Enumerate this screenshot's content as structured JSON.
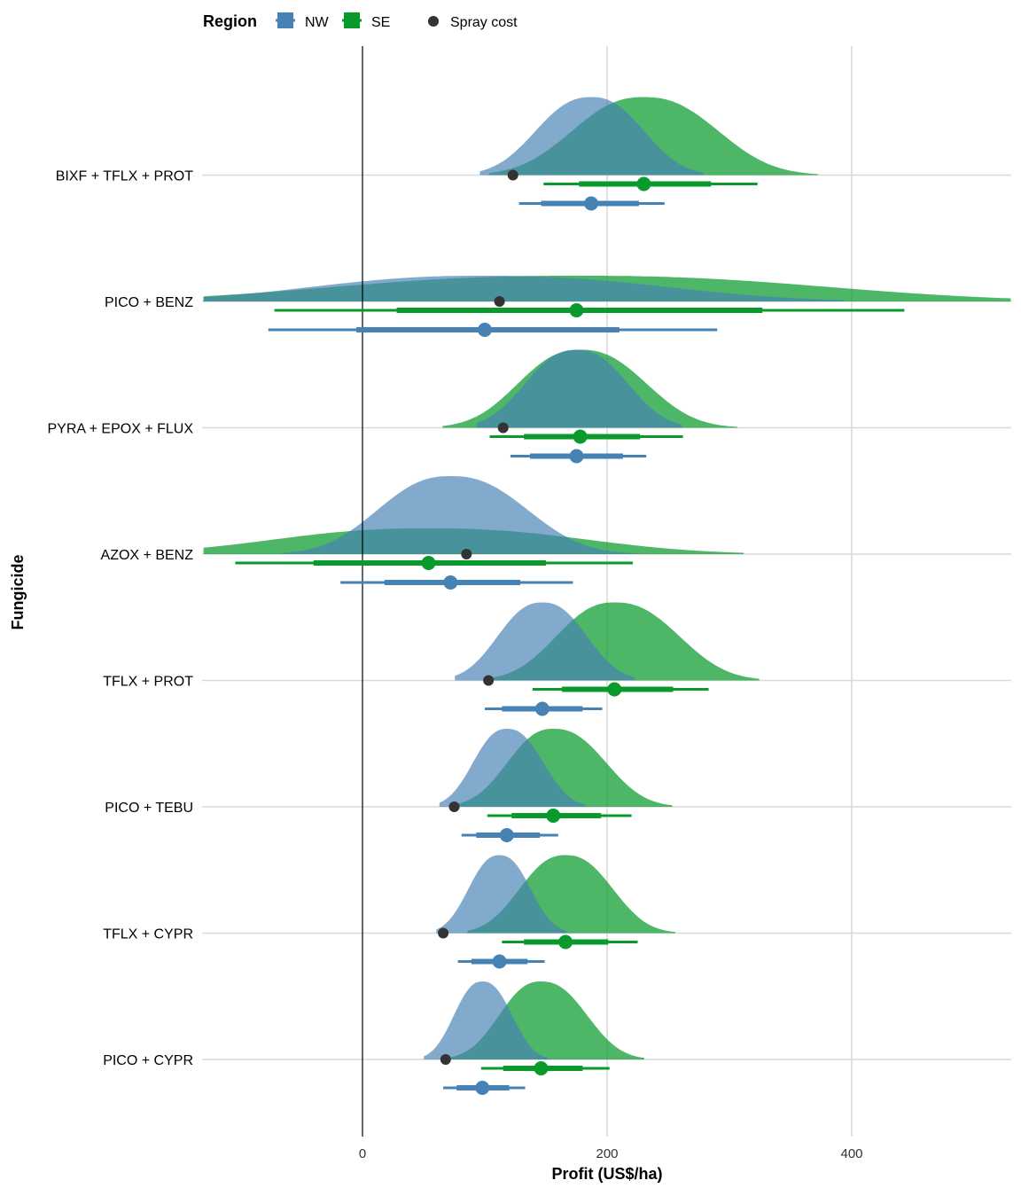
{
  "chart_data": {
    "type": "ridgeline",
    "xlabel": "Profit (US$/ha)",
    "ylabel": "Fungicide",
    "xlim": [
      -130,
      530
    ],
    "xticks": [
      0,
      200,
      400
    ],
    "grid": true,
    "legend": {
      "position": "top",
      "title": "Region",
      "items": [
        {
          "label": "NW",
          "color": "#4682b4"
        },
        {
          "label": "SE",
          "color": "#0a9a2c"
        }
      ],
      "point_label": "Spray cost"
    },
    "categories": [
      "BIXF + TFLX + PROT",
      "PICO + BENZ",
      "PYRA + EPOX + FLUX",
      "AZOX + BENZ",
      "TFLX + PROT",
      "PICO + TEBU",
      "TFLX + CYPR",
      "PICO + CYPR"
    ],
    "series": [
      {
        "name": "NW",
        "color": "#4682b4",
        "median": [
          187,
          100,
          175,
          72,
          147,
          118,
          112,
          98
        ],
        "interval_66": [
          [
            146,
            226
          ],
          [
            -5,
            210
          ],
          [
            137,
            213
          ],
          [
            18,
            129
          ],
          [
            114,
            180
          ],
          [
            93,
            145
          ],
          [
            89,
            135
          ],
          [
            77,
            120
          ]
        ],
        "interval_95": [
          [
            128,
            247
          ],
          [
            -77,
            290
          ],
          [
            121,
            232
          ],
          [
            -18,
            172
          ],
          [
            100,
            196
          ],
          [
            81,
            160
          ],
          [
            78,
            149
          ],
          [
            66,
            133
          ]
        ]
      },
      {
        "name": "SE",
        "color": "#0a9a2c",
        "median": [
          230,
          175,
          178,
          54,
          206,
          156,
          166,
          146
        ],
        "interval_66": [
          [
            177,
            285
          ],
          [
            28,
            327
          ],
          [
            132,
            227
          ],
          [
            -40,
            150
          ],
          [
            163,
            254
          ],
          [
            122,
            195
          ],
          [
            132,
            201
          ],
          [
            115,
            180
          ]
        ],
        "interval_95": [
          [
            148,
            323
          ],
          [
            -72,
            443
          ],
          [
            104,
            262
          ],
          [
            -104,
            221
          ],
          [
            139,
            283
          ],
          [
            102,
            220
          ],
          [
            114,
            225
          ],
          [
            97,
            202
          ]
        ]
      }
    ],
    "spray_cost": [
      123,
      112,
      115,
      85,
      103,
      75,
      66,
      68
    ]
  }
}
